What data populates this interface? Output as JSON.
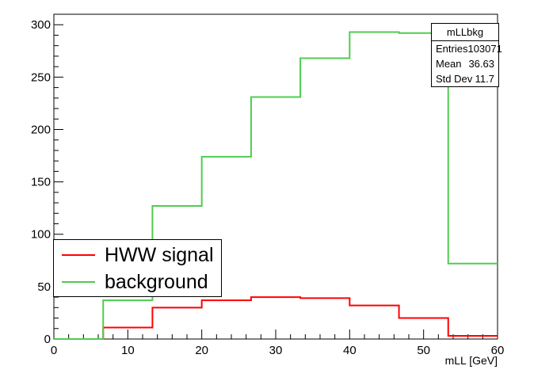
{
  "chart_data": {
    "type": "histogram",
    "title": "",
    "xlabel": "mLL [GeV]",
    "ylabel": "",
    "xlim": [
      0,
      60
    ],
    "ylim": [
      0,
      310
    ],
    "x_ticks": [
      0,
      10,
      20,
      30,
      40,
      50,
      60
    ],
    "y_ticks": [
      0,
      50,
      100,
      150,
      200,
      250,
      300
    ],
    "bin_edges": [
      0,
      6.67,
      13.33,
      20,
      26.67,
      33.33,
      40,
      46.67,
      53.33,
      60
    ],
    "series": [
      {
        "name": "HWW signal",
        "color": "#ff0000",
        "values": [
          0,
          11,
          30,
          37,
          40,
          39,
          32,
          20,
          3
        ]
      },
      {
        "name": "background",
        "color": "#4fcc4f",
        "values": [
          0,
          37,
          127,
          174,
          231,
          268,
          293,
          292,
          72
        ]
      }
    ],
    "legend_position": "bottom-left",
    "grid": false
  },
  "stats_box": {
    "title": "mLLbkg",
    "rows": [
      {
        "label": "Entries",
        "value": "103071"
      },
      {
        "label": "Mean",
        "value": "36.63"
      },
      {
        "label": "Std Dev",
        "value": "11.7"
      }
    ]
  },
  "legend": {
    "entries": [
      {
        "label": "HWW signal",
        "color": "#ff0000"
      },
      {
        "label": "background",
        "color": "#4fcc4f"
      }
    ]
  }
}
